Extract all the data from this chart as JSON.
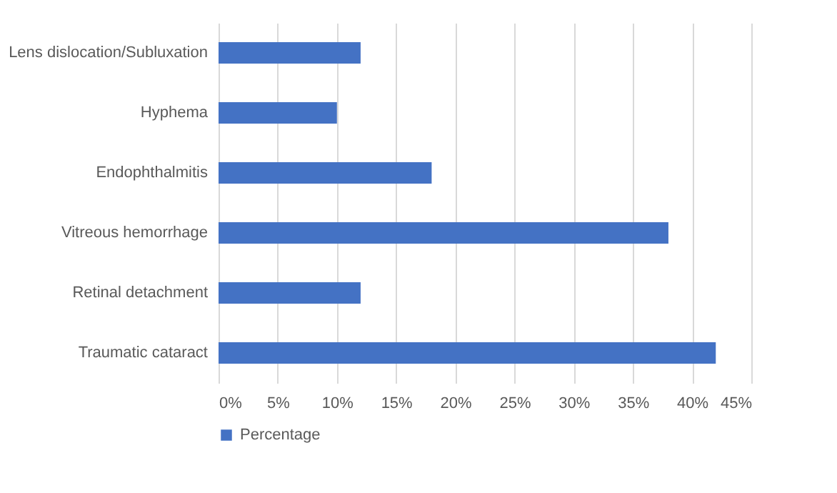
{
  "chart_data": {
    "type": "bar",
    "orientation": "horizontal",
    "categories": [
      "Lens dislocation/Subluxation",
      "Hyphema",
      "Endophthalmitis",
      "Vitreous hemorrhage",
      "Retinal detachment",
      "Traumatic cataract"
    ],
    "series": [
      {
        "name": "Percentage",
        "color": "#4472c4",
        "values": [
          12,
          10,
          18,
          38,
          12,
          42
        ]
      }
    ],
    "xlim": [
      0,
      45
    ],
    "xticks": [
      {
        "value": 0,
        "label": "0%"
      },
      {
        "value": 5,
        "label": "5%"
      },
      {
        "value": 10,
        "label": "10%"
      },
      {
        "value": 15,
        "label": "15%"
      },
      {
        "value": 20,
        "label": "20%"
      },
      {
        "value": 25,
        "label": "25%"
      },
      {
        "value": 30,
        "label": "30%"
      },
      {
        "value": 35,
        "label": "35%"
      },
      {
        "value": 40,
        "label": "40%"
      },
      {
        "value": 45,
        "label": "45%"
      }
    ],
    "grid": "x",
    "legend": "bottom"
  }
}
